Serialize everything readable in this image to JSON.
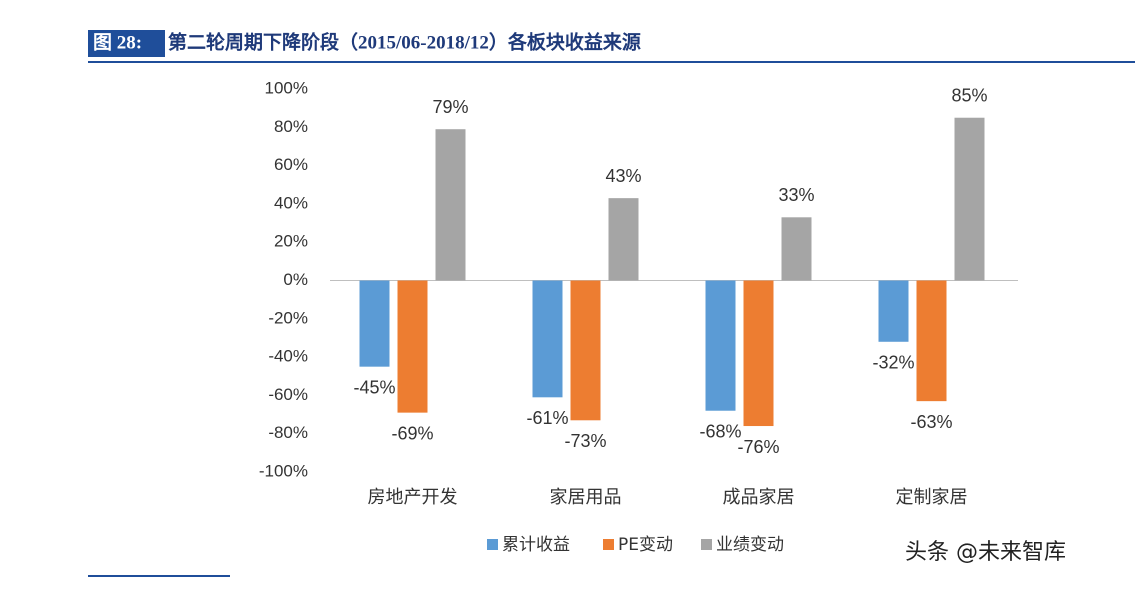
{
  "header": {
    "label": "图 28:",
    "title": "第二轮周期下降阶段（2015/06-2018/12）各板块收益来源"
  },
  "chart_data": {
    "type": "bar",
    "categories": [
      "房地产开发",
      "家居用品",
      "成品家居",
      "定制家居"
    ],
    "series": [
      {
        "name": "累计收益",
        "color": "#5b9bd5",
        "values": [
          -45,
          -61,
          -68,
          -32
        ],
        "value_labels": [
          "-45%",
          "-61%",
          "-68%",
          "-32%"
        ]
      },
      {
        "name": "PE变动",
        "color": "#ed7d31",
        "values": [
          -69,
          -73,
          -76,
          -63
        ],
        "value_labels": [
          "-69%",
          "-73%",
          "-76%",
          "-63%"
        ]
      },
      {
        "name": "业绩变动",
        "color": "#a5a5a5",
        "values": [
          79,
          43,
          33,
          85
        ],
        "value_labels": [
          "79%",
          "43%",
          "33%",
          "85%"
        ]
      }
    ],
    "ylim": [
      -100,
      100
    ],
    "yticks": [
      {
        "value": -100,
        "label": "-100%"
      },
      {
        "value": -80,
        "label": "-80%"
      },
      {
        "value": -60,
        "label": "-60%"
      },
      {
        "value": -40,
        "label": "-40%"
      },
      {
        "value": -20,
        "label": "-20%"
      },
      {
        "value": 0,
        "label": "0%"
      },
      {
        "value": 20,
        "label": "20%"
      },
      {
        "value": 40,
        "label": "40%"
      },
      {
        "value": 60,
        "label": "60%"
      },
      {
        "value": 80,
        "label": "80%"
      },
      {
        "value": 100,
        "label": "100%"
      }
    ],
    "legend": "bottom"
  },
  "watermark": "头条 @未来智库"
}
